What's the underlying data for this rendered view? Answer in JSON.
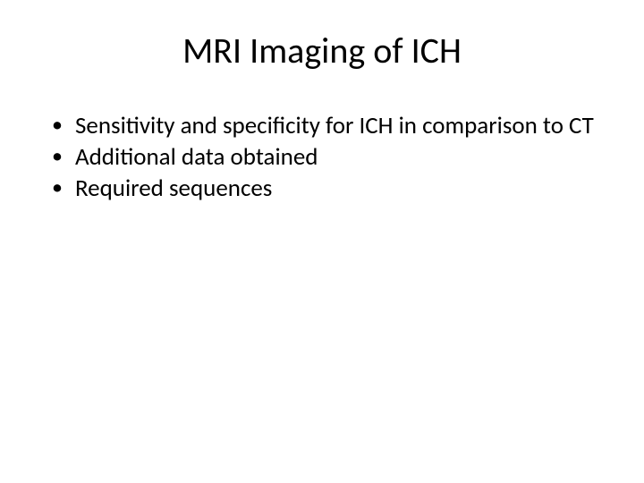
{
  "slide": {
    "title": "MRI Imaging of ICH",
    "bullets": [
      "Sensitivity and specificity for ICH in comparison to CT",
      "Additional data obtained",
      "Required sequences"
    ],
    "background_color": "#ffffff",
    "text_color": "#000000",
    "title_fontsize": 40,
    "bullet_fontsize": 27,
    "font_family": "Calibri"
  }
}
